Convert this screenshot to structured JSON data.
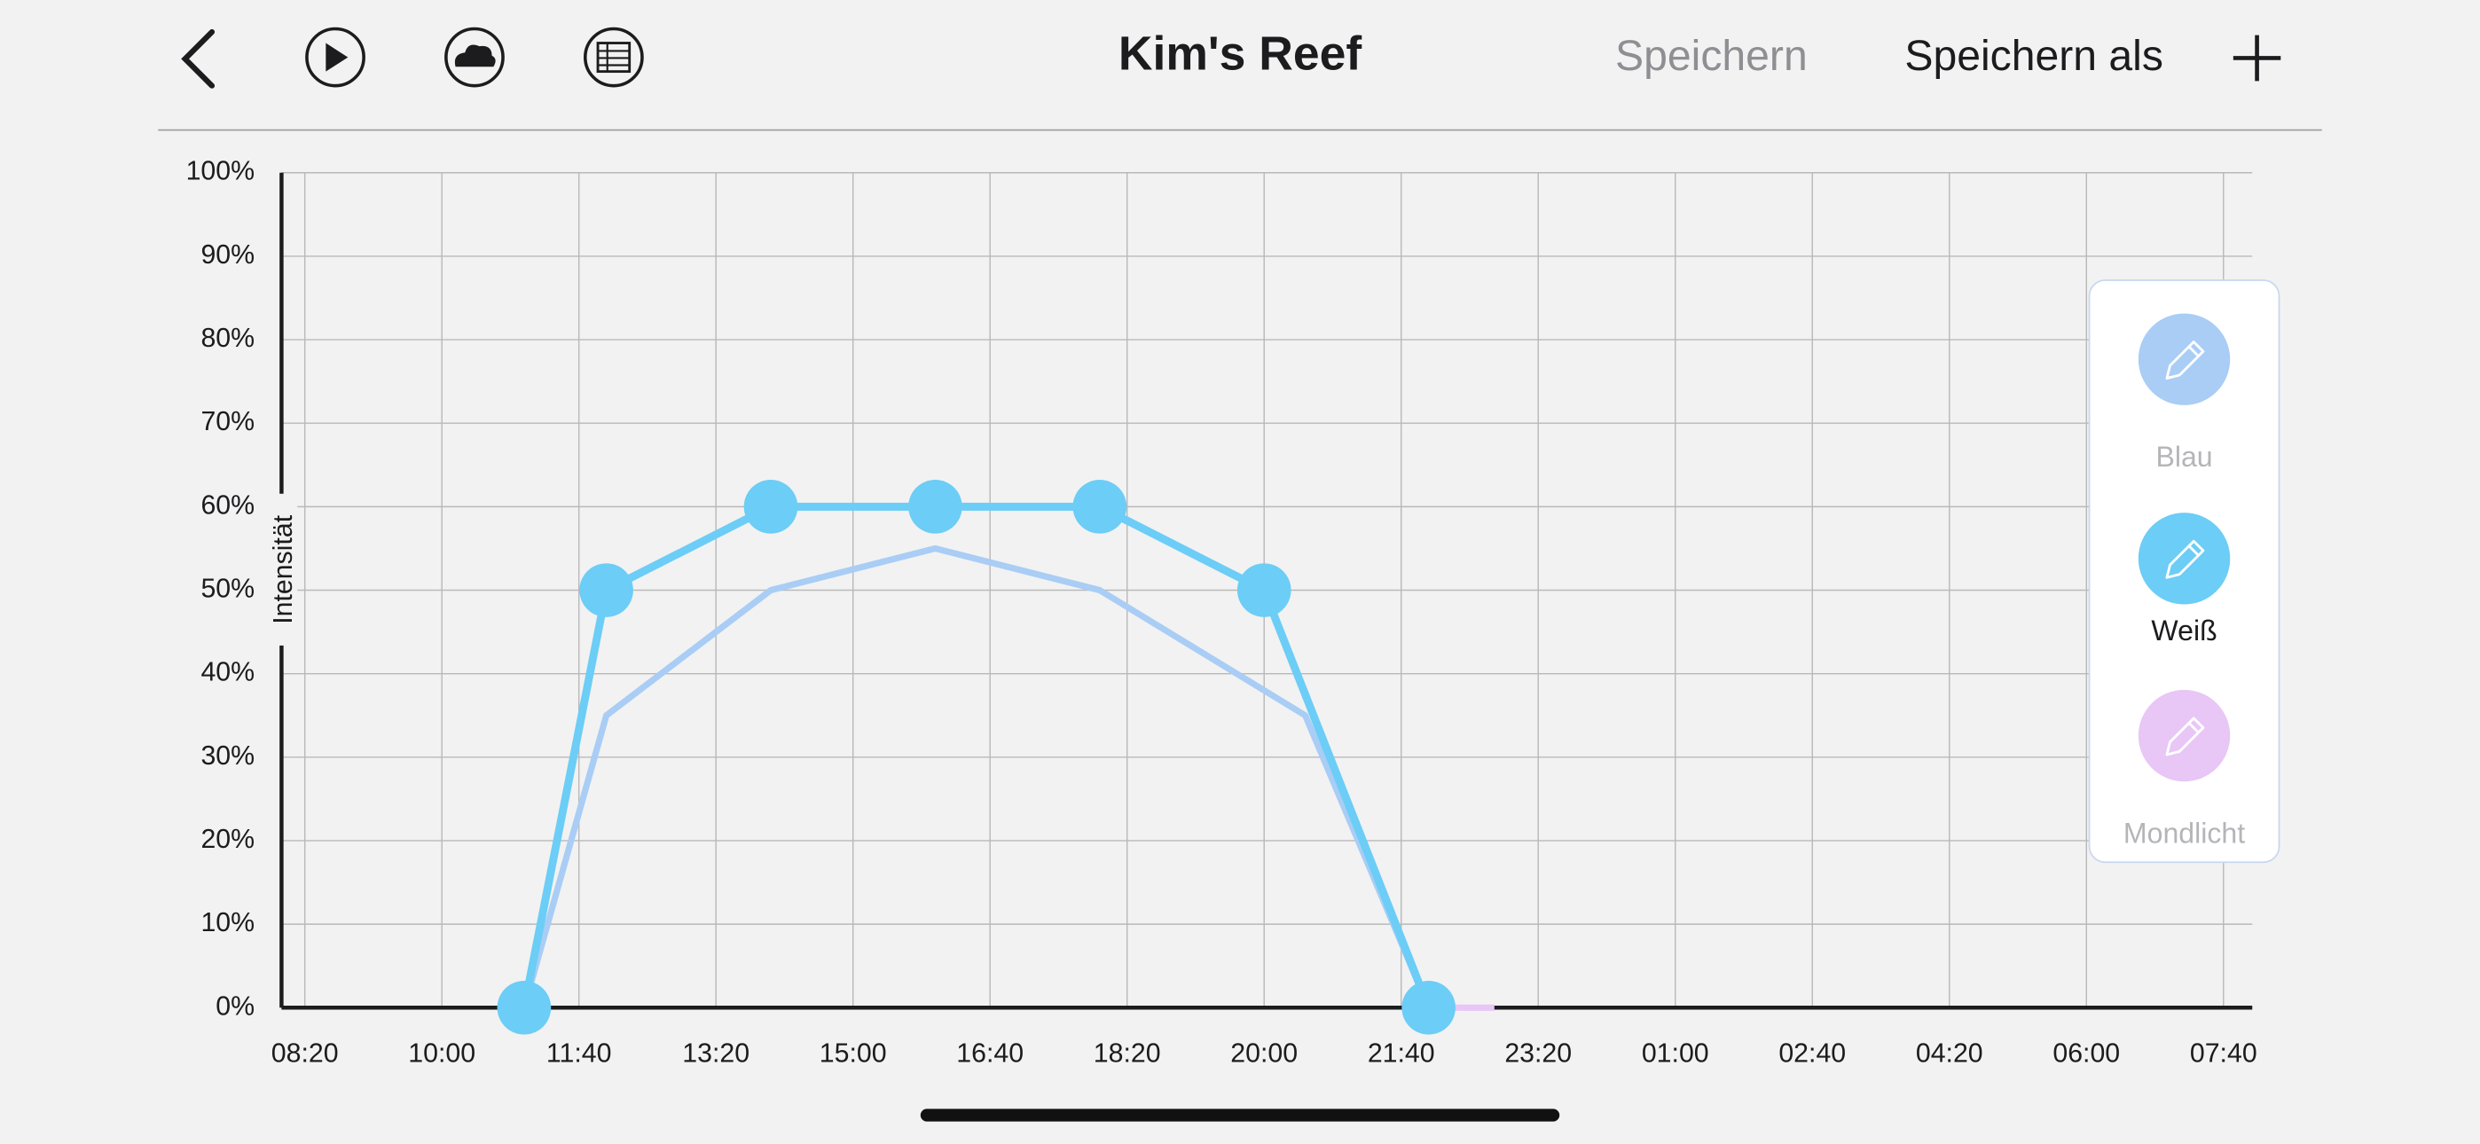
{
  "header": {
    "title": "Kim's Reef",
    "save": "Speichern",
    "save_as": "Speichern als"
  },
  "chart_data": {
    "type": "line",
    "y_label": "Intensität",
    "grid": true,
    "xlim": [
      483,
      1921
    ],
    "xticks": [
      {
        "value": 500,
        "label": "08:20"
      },
      {
        "value": 600,
        "label": "10:00"
      },
      {
        "value": 700,
        "label": "11:40"
      },
      {
        "value": 800,
        "label": "13:20"
      },
      {
        "value": 900,
        "label": "15:00"
      },
      {
        "value": 1000,
        "label": "16:40"
      },
      {
        "value": 1100,
        "label": "18:20"
      },
      {
        "value": 1200,
        "label": "20:00"
      },
      {
        "value": 1300,
        "label": "21:40"
      },
      {
        "value": 1400,
        "label": "23:20"
      },
      {
        "value": 1500,
        "label": "01:00"
      },
      {
        "value": 1600,
        "label": "02:40"
      },
      {
        "value": 1700,
        "label": "04:20"
      },
      {
        "value": 1800,
        "label": "06:00"
      },
      {
        "value": 1900,
        "label": "07:40"
      }
    ],
    "ylim": [
      0,
      100
    ],
    "yticks": [
      {
        "value": 0,
        "label": "0%"
      },
      {
        "value": 10,
        "label": "10%"
      },
      {
        "value": 20,
        "label": "20%"
      },
      {
        "value": 30,
        "label": "30%"
      },
      {
        "value": 40,
        "label": "40%"
      },
      {
        "value": 50,
        "label": "50%"
      },
      {
        "value": 60,
        "label": "60%"
      },
      {
        "value": 70,
        "label": "70%"
      },
      {
        "value": 80,
        "label": "80%"
      },
      {
        "value": 90,
        "label": "90%"
      },
      {
        "value": 100,
        "label": "100%"
      }
    ],
    "series": [
      {
        "name": "Blau",
        "color": "#a9cdf5",
        "active": false,
        "x": [
          660,
          720,
          840,
          960,
          1080,
          1230,
          1320
        ],
        "values": [
          0,
          35,
          50,
          55,
          50,
          35,
          0
        ]
      },
      {
        "name": "Weiß",
        "color": "#6ccdf6",
        "active": true,
        "x": [
          660,
          720,
          840,
          960,
          1080,
          1200,
          1320
        ],
        "values": [
          0,
          50,
          60,
          60,
          60,
          50,
          0
        ]
      },
      {
        "name": "Mondlicht",
        "color": "#e8c6f6",
        "active": false,
        "x": [
          1330,
          1368
        ],
        "values": [
          0,
          0
        ]
      }
    ]
  }
}
